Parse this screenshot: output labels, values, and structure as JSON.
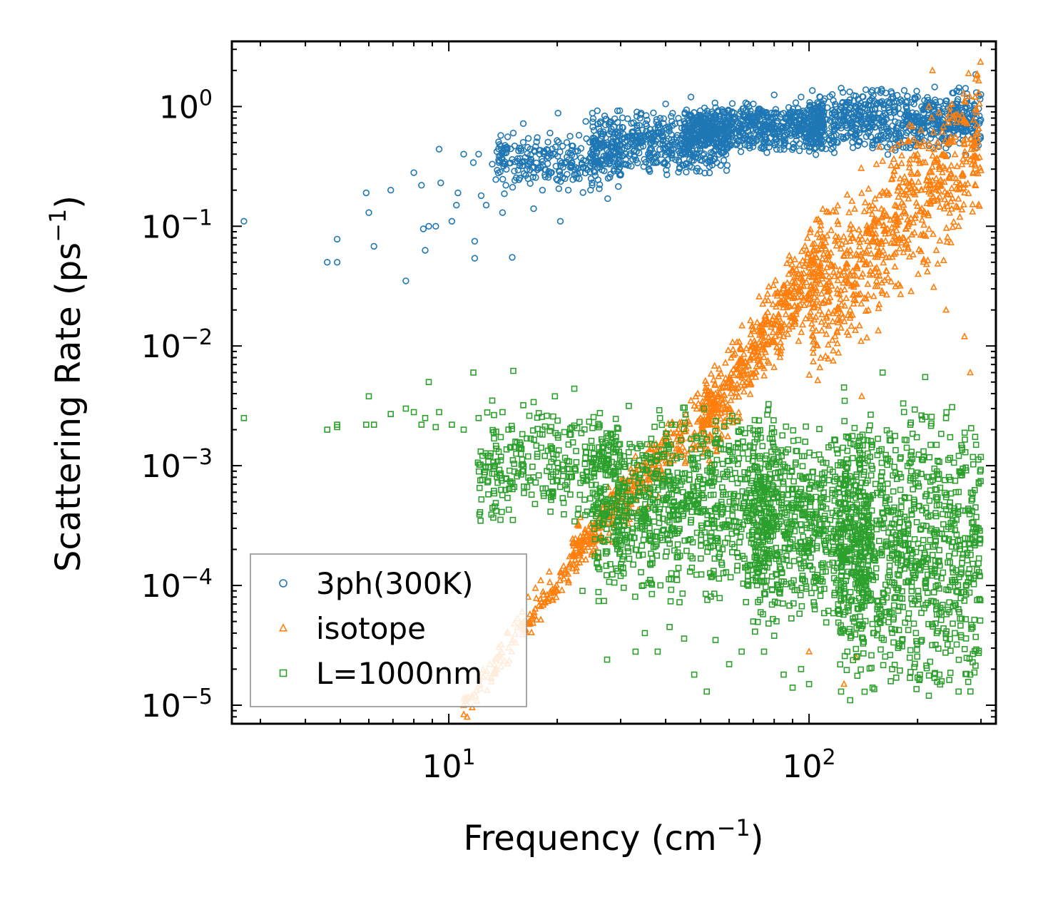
{
  "chart_data": {
    "type": "scatter",
    "xscale": "log",
    "yscale": "log",
    "xlim": [
      2.5,
      330
    ],
    "ylim": [
      7e-06,
      3.5
    ],
    "xlabel": {
      "base": "Frequency (cm",
      "sup": "−1",
      "tail": ")"
    },
    "ylabel": {
      "base": "Scattering Rate (ps",
      "sup": "−1",
      "tail": ")"
    },
    "xticks": [
      {
        "value": 10,
        "base": "10",
        "exp": "1"
      },
      {
        "value": 100,
        "base": "10",
        "exp": "2"
      }
    ],
    "yticks": [
      {
        "value": 1,
        "base": "10",
        "exp": "0"
      },
      {
        "value": 0.1,
        "base": "10",
        "exp": "−1"
      },
      {
        "value": 0.01,
        "base": "10",
        "exp": "−2"
      },
      {
        "value": 0.001,
        "base": "10",
        "exp": "−3"
      },
      {
        "value": 0.0001,
        "base": "10",
        "exp": "−4"
      },
      {
        "value": 1e-05,
        "base": "10",
        "exp": "−5"
      }
    ],
    "legend": {
      "position": "lower-left"
    },
    "series": [
      {
        "name": "3ph(300K)",
        "marker": "circle",
        "color": "#1f77b4",
        "points": [
          [
            2.7,
            0.11
          ],
          [
            4.6,
            0.05
          ],
          [
            4.9,
            0.078
          ],
          [
            4.9,
            0.05
          ],
          [
            5.9,
            0.19
          ],
          [
            6.0,
            0.13
          ],
          [
            6.2,
            0.068
          ],
          [
            6.9,
            0.2
          ],
          [
            7.6,
            0.035
          ],
          [
            8.0,
            0.28
          ],
          [
            8.4,
            0.22
          ],
          [
            8.5,
            0.095
          ],
          [
            8.6,
            0.063
          ],
          [
            8.8,
            0.1
          ],
          [
            9.2,
            0.1
          ],
          [
            9.4,
            0.44
          ],
          [
            9.5,
            0.23
          ],
          [
            10.2,
            0.11
          ],
          [
            10.5,
            0.15
          ],
          [
            10.6,
            0.19
          ],
          [
            11.0,
            0.4
          ],
          [
            11.7,
            0.34
          ],
          [
            11.8,
            0.075
          ],
          [
            11.8,
            0.054
          ],
          [
            12.1,
            0.4
          ],
          [
            12.3,
            0.18
          ],
          [
            12.7,
            0.15
          ],
          [
            13.2,
            0.33
          ],
          [
            13.6,
            0.42
          ],
          [
            14.1,
            0.13
          ],
          [
            14.4,
            0.22
          ],
          [
            15.0,
            0.055
          ],
          [
            15.1,
            0.6
          ],
          [
            15.7,
            0.45
          ],
          [
            16.1,
            0.72
          ],
          [
            16.6,
            0.25
          ],
          [
            17.2,
            0.14
          ],
          [
            17.6,
            0.55
          ],
          [
            18.2,
            0.2
          ],
          [
            19.1,
            0.6
          ],
          [
            19.7,
            0.4
          ],
          [
            20.1,
            0.88
          ],
          [
            20.4,
            0.11
          ],
          [
            21.0,
            0.25
          ],
          [
            22.3,
            0.3
          ],
          [
            24.0,
            0.75
          ],
          [
            25.0,
            0.22
          ],
          [
            26.3,
            0.45
          ],
          [
            27.6,
            0.17
          ],
          [
            29.4,
            0.92
          ],
          [
            31.0,
            0.4
          ],
          [
            33.5,
            0.62
          ],
          [
            36.0,
            0.3
          ],
          [
            38.0,
            0.7
          ],
          [
            40.0,
            1.05
          ],
          [
            43.0,
            0.55
          ],
          [
            45.5,
            0.4
          ],
          [
            47.0,
            1.2
          ],
          [
            50.0,
            0.75
          ],
          [
            55.0,
            0.5
          ],
          [
            58.0,
            0.9
          ],
          [
            63.0,
            0.6
          ],
          [
            70.0,
            1.05
          ],
          [
            75.0,
            0.5
          ],
          [
            80.0,
            1.25
          ],
          [
            88.0,
            0.72
          ],
          [
            95.0,
            1.2
          ],
          [
            100.0,
            0.6
          ],
          [
            110.0,
            0.9
          ],
          [
            120.0,
            0.5
          ],
          [
            135.0,
            1.0
          ],
          [
            150.0,
            0.45
          ],
          [
            165.0,
            1.1
          ],
          [
            180.0,
            0.6
          ],
          [
            200.0,
            1.2
          ],
          [
            215.0,
            0.75
          ],
          [
            230.0,
            0.5
          ],
          [
            250.0,
            1.3
          ],
          [
            270.0,
            0.8
          ],
          [
            290.0,
            1.85
          ]
        ],
        "clouds": [
          {
            "x": [
              13.5,
              30
            ],
            "y": [
              0.18,
              0.62
            ],
            "count": 250,
            "seed": 11
          },
          {
            "x": [
              25,
              60
            ],
            "y": [
              0.25,
              0.95
            ],
            "count": 500,
            "seed": 12
          },
          {
            "x": [
              45,
              110
            ],
            "y": [
              0.4,
              1.1
            ],
            "count": 650,
            "seed": 13
          },
          {
            "x": [
              100,
              300
            ],
            "y": [
              0.38,
              1.5
            ],
            "count": 700,
            "seed": 14
          }
        ]
      },
      {
        "name": "isotope",
        "marker": "triangle",
        "color": "#ff7f0e",
        "points": [
          [
            11.0,
            1e-05
          ],
          [
            11.6,
            1.2e-05
          ],
          [
            12.2,
            1.5e-05
          ],
          [
            13.0,
            2.2e-05
          ],
          [
            13.6,
            2e-05
          ],
          [
            14.0,
            3.2e-05
          ],
          [
            14.6,
            4e-05
          ],
          [
            15.2,
            4.8e-05
          ],
          [
            16.0,
            6e-05
          ],
          [
            16.6,
            8e-05
          ],
          [
            17.4,
            9.5e-05
          ],
          [
            18.0,
            0.00011
          ],
          [
            19.0,
            0.00013
          ],
          [
            20.0,
            9e-05
          ],
          [
            22.0,
            0.00018
          ],
          [
            24.0,
            0.00022
          ],
          [
            26.0,
            0.0003
          ],
          [
            28.0,
            0.00045
          ],
          [
            30.0,
            0.00075
          ],
          [
            33.0,
            0.0012
          ],
          [
            36.0,
            0.0015
          ],
          [
            40.0,
            0.0011
          ],
          [
            44.0,
            0.0022
          ],
          [
            47.0,
            0.0035
          ],
          [
            50.0,
            0.0025
          ],
          [
            55.0,
            0.004
          ],
          [
            60.0,
            0.005
          ],
          [
            65.0,
            0.0075
          ],
          [
            70.0,
            0.009
          ],
          [
            75.0,
            0.0065
          ],
          [
            80.0,
            0.015
          ],
          [
            85.0,
            0.012
          ],
          [
            90.0,
            0.025
          ],
          [
            95.0,
            0.032
          ],
          [
            100.0,
            0.045
          ],
          [
            105.0,
            0.035
          ],
          [
            110.0,
            0.08
          ],
          [
            115.0,
            0.06
          ],
          [
            120.0,
            0.11
          ],
          [
            130.0,
            0.02
          ],
          [
            140.0,
            0.0038
          ],
          [
            150.0,
            0.15
          ],
          [
            160.0,
            0.35
          ],
          [
            170.0,
            0.25
          ],
          [
            180.0,
            0.5
          ],
          [
            190.0,
            0.7
          ],
          [
            200.0,
            0.4
          ],
          [
            215.0,
            1.0
          ],
          [
            220.0,
            2.0
          ],
          [
            230.0,
            0.3
          ],
          [
            240.0,
            0.02
          ],
          [
            250.0,
            0.8
          ],
          [
            260.0,
            0.1
          ],
          [
            270.0,
            0.012
          ],
          [
            280.0,
            0.006
          ],
          [
            290.0,
            1.7
          ],
          [
            288.0,
            0.5
          ],
          [
            135.0,
            2.5e-05
          ],
          [
            125.0,
            1.5e-05
          ],
          [
            100.0,
            2.8e-05
          ]
        ],
        "clouds": [
          {
            "x": [
              11,
              25
            ],
            "y_curve": [
              [
                11,
                1e-05
              ],
              [
                25,
                0.00025
              ]
            ],
            "spread": 0.12,
            "count": 140,
            "seed": 21
          },
          {
            "x": [
              22,
              55
            ],
            "y_curve": [
              [
                22,
                0.00018
              ],
              [
                55,
                0.0035
              ]
            ],
            "spread": 0.22,
            "count": 350,
            "seed": 22
          },
          {
            "x": [
              50,
              110
            ],
            "y_curve": [
              [
                50,
                0.002
              ],
              [
                110,
                0.06
              ]
            ],
            "spread": 0.35,
            "count": 500,
            "seed": 23
          },
          {
            "x": [
              100,
              300
            ],
            "y_curve": [
              [
                100,
                0.02
              ],
              [
                300,
                0.5
              ]
            ],
            "spread": 0.6,
            "count": 700,
            "seed": 24
          }
        ]
      },
      {
        "name": "L=1000nm",
        "marker": "square",
        "color": "#2ca02c",
        "points": [
          [
            2.7,
            0.0025
          ],
          [
            4.6,
            0.002
          ],
          [
            4.9,
            0.0022
          ],
          [
            4.9,
            0.0021
          ],
          [
            5.9,
            0.0022
          ],
          [
            6.0,
            0.0038
          ],
          [
            6.2,
            0.0022
          ],
          [
            6.9,
            0.0027
          ],
          [
            7.6,
            0.003
          ],
          [
            8.0,
            0.0028
          ],
          [
            8.4,
            0.0022
          ],
          [
            8.6,
            0.0025
          ],
          [
            8.8,
            0.005
          ],
          [
            9.2,
            0.0021
          ],
          [
            9.4,
            0.0028
          ],
          [
            10.2,
            0.0022
          ],
          [
            11.0,
            0.002
          ],
          [
            11.7,
            0.006
          ],
          [
            12.1,
            0.0025
          ],
          [
            13.2,
            0.0035
          ],
          [
            14.1,
            0.0028
          ],
          [
            15.1,
            0.0062
          ],
          [
            16.1,
            0.0032
          ],
          [
            17.2,
            0.0034
          ],
          [
            18.2,
            0.002
          ],
          [
            19.7,
            0.0038
          ],
          [
            22.3,
            0.0044
          ],
          [
            23.5,
            9e-05
          ],
          [
            24.0,
            0.0013
          ],
          [
            26.0,
            0.00045
          ],
          [
            27.5,
            2.4e-05
          ],
          [
            30.0,
            0.00012
          ],
          [
            33.0,
            2.8e-05
          ],
          [
            35.0,
            4e-05
          ],
          [
            38.0,
            2.8e-05
          ],
          [
            41.0,
            4.5e-05
          ],
          [
            45.0,
            3.6e-05
          ],
          [
            48.0,
            1.8e-05
          ],
          [
            52.0,
            1.3e-05
          ],
          [
            55.0,
            3.5e-05
          ],
          [
            60.0,
            2.2e-05
          ],
          [
            65.0,
            2.8e-05
          ],
          [
            70.0,
            5e-05
          ],
          [
            75.0,
            2.8e-05
          ],
          [
            80.0,
            3.8e-05
          ],
          [
            85.0,
            1.8e-05
          ],
          [
            90.0,
            1.4e-05
          ],
          [
            95.0,
            2e-05
          ],
          [
            100.0,
            1.5e-05
          ],
          [
            130.0,
            1.1e-05
          ],
          [
            150.0,
            1.4e-05
          ],
          [
            170.0,
            2e-05
          ],
          [
            200.0,
            1.7e-05
          ],
          [
            215.0,
            1.2e-05
          ],
          [
            230.0,
            1.8e-05
          ],
          [
            260.0,
            1.3e-05
          ],
          [
            280.0,
            1.8e-05
          ],
          [
            210.0,
            0.0055
          ],
          [
            240.0,
            0.0025
          ],
          [
            180.0,
            0.0008
          ],
          [
            160.0,
            0.006
          ],
          [
            125.0,
            0.0045
          ]
        ],
        "clouds": [
          {
            "x": [
              12,
              30
            ],
            "y": [
              0.0003,
              0.0032
            ],
            "count": 300,
            "seed": 31
          },
          {
            "x": [
              25,
              80
            ],
            "y": [
              6e-05,
              0.0035
            ],
            "count": 900,
            "seed": 32
          },
          {
            "x": [
              70,
              150
            ],
            "y": [
              4e-05,
              0.0025
            ],
            "count": 700,
            "seed": 33
          },
          {
            "x": [
              120,
              300
            ],
            "y": [
              1e-05,
              0.004
            ],
            "count": 900,
            "seed": 34
          }
        ]
      }
    ]
  }
}
